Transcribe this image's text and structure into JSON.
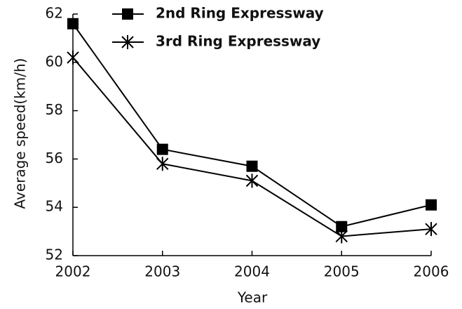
{
  "chart_data": {
    "type": "line",
    "x_label": "Year",
    "y_label": "Average speed(km/h)",
    "x": [
      2002,
      2003,
      2004,
      2005,
      2006
    ],
    "xlim": [
      2002,
      2006
    ],
    "xticks": [
      2002,
      2003,
      2004,
      2005,
      2006
    ],
    "ylim": [
      52,
      62
    ],
    "yticks": [
      52,
      54,
      56,
      58,
      60,
      62
    ],
    "legend": "top",
    "series": [
      {
        "name": "2nd Ring Expressway",
        "color": "#000000",
        "marker": "square",
        "values": [
          61.6,
          56.4,
          55.7,
          53.2,
          54.1
        ]
      },
      {
        "name": "3rd Ring Expressway",
        "color": "#000000",
        "marker": "asterisk",
        "values": [
          60.2,
          55.8,
          55.1,
          52.8,
          53.1
        ]
      }
    ]
  }
}
